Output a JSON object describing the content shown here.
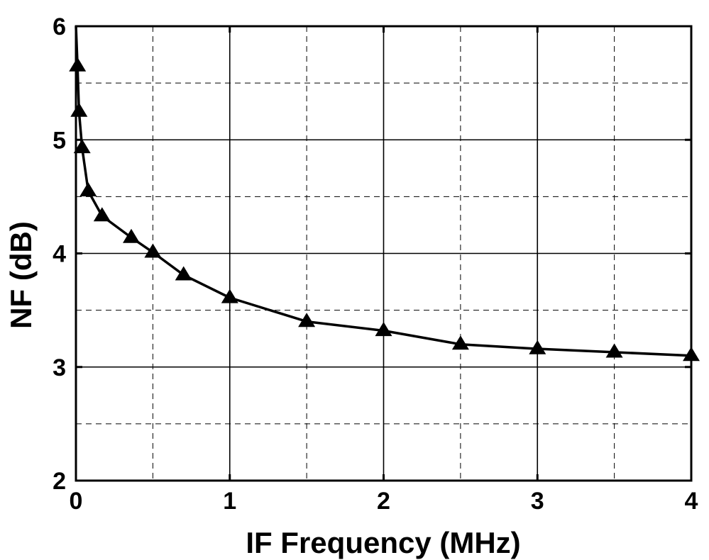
{
  "chart_data": {
    "type": "line",
    "xlabel": "IF Frequency (MHz)",
    "ylabel": "NF (dB)",
    "xlim": [
      0,
      4
    ],
    "ylim": [
      2,
      6
    ],
    "x_ticks": [
      0,
      1,
      2,
      3,
      4
    ],
    "y_ticks": [
      2,
      3,
      4,
      5,
      6
    ],
    "x_tick_labels": [
      "0",
      "1",
      "2",
      "3",
      "4"
    ],
    "y_tick_labels": [
      "2",
      "3",
      "4",
      "5",
      "6"
    ],
    "grid": true,
    "grid_style": "solid major, dashed minor",
    "marker": "triangle",
    "color": "#000000",
    "series": [
      {
        "x": [
          0.01,
          0.02,
          0.04,
          0.08,
          0.17,
          0.36,
          0.5,
          0.7,
          1.0,
          1.5,
          2.0,
          2.5,
          3.0,
          3.5,
          4.0
        ],
        "y": [
          5.65,
          5.25,
          4.93,
          4.55,
          4.33,
          4.14,
          4.01,
          3.81,
          3.61,
          3.4,
          3.32,
          3.2,
          3.16,
          3.13,
          3.1
        ]
      }
    ]
  }
}
